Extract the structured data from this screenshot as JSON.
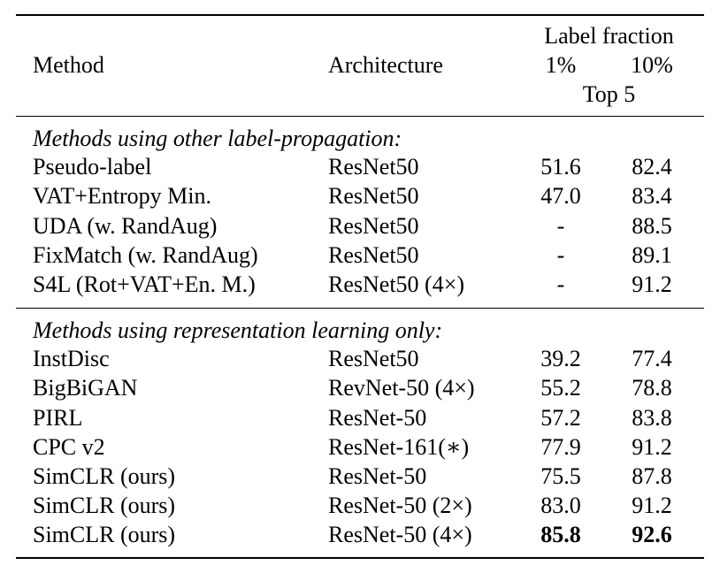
{
  "header": {
    "method": "Method",
    "architecture": "Architecture",
    "label_fraction": "Label fraction",
    "pct1": "1%",
    "pct10": "10%",
    "metric": "Top 5"
  },
  "groups": [
    {
      "title": "Methods using other label-propagation:",
      "rows": [
        {
          "method": "Pseudo-label",
          "arch": "ResNet50",
          "p1": "51.6",
          "p10": "82.4"
        },
        {
          "method": "VAT+Entropy Min.",
          "arch": "ResNet50",
          "p1": "47.0",
          "p10": "83.4"
        },
        {
          "method": "UDA (w. RandAug)",
          "arch": "ResNet50",
          "p1": "-",
          "p10": "88.5"
        },
        {
          "method": "FixMatch (w. RandAug)",
          "arch": "ResNet50",
          "p1": "-",
          "p10": "89.1"
        },
        {
          "method": "S4L (Rot+VAT+En. M.)",
          "arch": "ResNet50 (4×)",
          "p1": "-",
          "p10": "91.2"
        }
      ]
    },
    {
      "title": "Methods using representation learning only:",
      "rows": [
        {
          "method": "InstDisc",
          "arch": "ResNet50",
          "p1": "39.2",
          "p10": "77.4"
        },
        {
          "method": "BigBiGAN",
          "arch": "RevNet-50 (4×)",
          "p1": "55.2",
          "p10": "78.8"
        },
        {
          "method": "PIRL",
          "arch": "ResNet-50",
          "p1": "57.2",
          "p10": "83.8"
        },
        {
          "method": "CPC v2",
          "arch": "ResNet-161(∗)",
          "p1": "77.9",
          "p10": "91.2"
        },
        {
          "method": "SimCLR (ours)",
          "arch": "ResNet-50",
          "p1": "75.5",
          "p10": "87.8"
        },
        {
          "method": "SimCLR (ours)",
          "arch": "ResNet-50 (2×)",
          "p1": "83.0",
          "p10": "91.2"
        },
        {
          "method": "SimCLR (ours)",
          "arch": "ResNet-50 (4×)",
          "p1": "85.8",
          "p10": "92.6"
        }
      ]
    }
  ]
}
